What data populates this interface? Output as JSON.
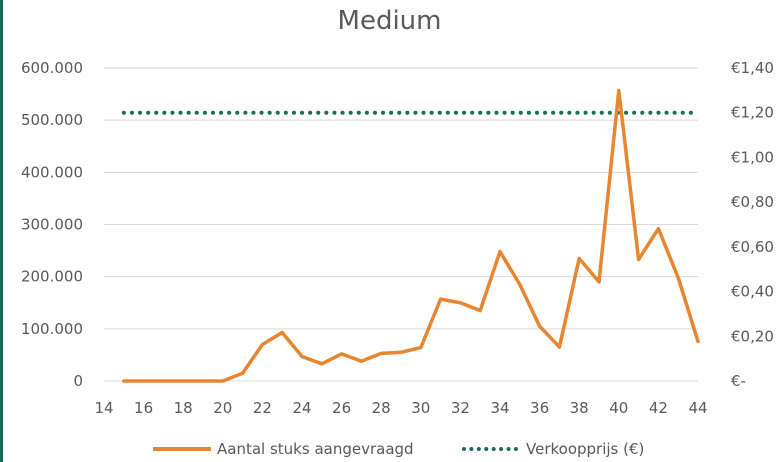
{
  "chart_data": {
    "type": "line",
    "title": "Medium",
    "xlabel": "",
    "ylabel": "",
    "x": [
      15,
      16,
      17,
      18,
      19,
      20,
      21,
      22,
      23,
      24,
      25,
      26,
      27,
      28,
      29,
      30,
      31,
      32,
      33,
      34,
      35,
      36,
      37,
      38,
      39,
      40,
      41,
      42,
      43,
      44
    ],
    "x_ticks": [
      14,
      16,
      18,
      20,
      22,
      24,
      26,
      28,
      30,
      32,
      34,
      36,
      38,
      40,
      42,
      44
    ],
    "x_tick_labels": [
      "14",
      "16",
      "18",
      "20",
      "22",
      "24",
      "26",
      "28",
      "30",
      "32",
      "34",
      "36",
      "38",
      "40",
      "42",
      "44"
    ],
    "xlim": [
      14,
      44
    ],
    "ylim": [
      0,
      600000
    ],
    "y_ticks": [
      0,
      100000,
      200000,
      300000,
      400000,
      500000,
      600000
    ],
    "y_tick_labels": [
      "0",
      "100.000",
      "200.000",
      "300.000",
      "400.000",
      "500.000",
      "600.000"
    ],
    "y2lim": [
      0,
      1.4
    ],
    "y2_ticks": [
      0,
      0.2,
      0.4,
      0.6,
      0.8,
      1.0,
      1.2,
      1.4
    ],
    "y2_tick_labels": [
      "€-",
      "€0,20",
      "€0,40",
      "€0,60",
      "€0,80",
      "€1,00",
      "€1,20",
      "€1,40"
    ],
    "grid": true,
    "legend_position": "bottom",
    "series": [
      {
        "name": "Aantal stuks aangevraagd",
        "axis": "left",
        "color": "#E8852F",
        "style": "solid",
        "values": [
          0,
          0,
          0,
          0,
          0,
          0,
          15000,
          70000,
          93000,
          47000,
          33000,
          52000,
          38000,
          53000,
          55000,
          64000,
          157000,
          150000,
          135000,
          248000,
          185000,
          105000,
          65000,
          235000,
          190000,
          557000,
          233000,
          292000,
          198000,
          76000
        ]
      },
      {
        "name": "Verkoopprijs (€)",
        "axis": "right",
        "color": "#1A6B5A",
        "style": "dotted",
        "values": [
          1.2,
          1.2,
          1.2,
          1.2,
          1.2,
          1.2,
          1.2,
          1.2,
          1.2,
          1.2,
          1.2,
          1.2,
          1.2,
          1.2,
          1.2,
          1.2,
          1.2,
          1.2,
          1.2,
          1.2,
          1.2,
          1.2,
          1.2,
          1.2,
          1.2,
          1.2,
          1.2,
          1.2,
          1.2,
          1.2
        ]
      }
    ]
  }
}
